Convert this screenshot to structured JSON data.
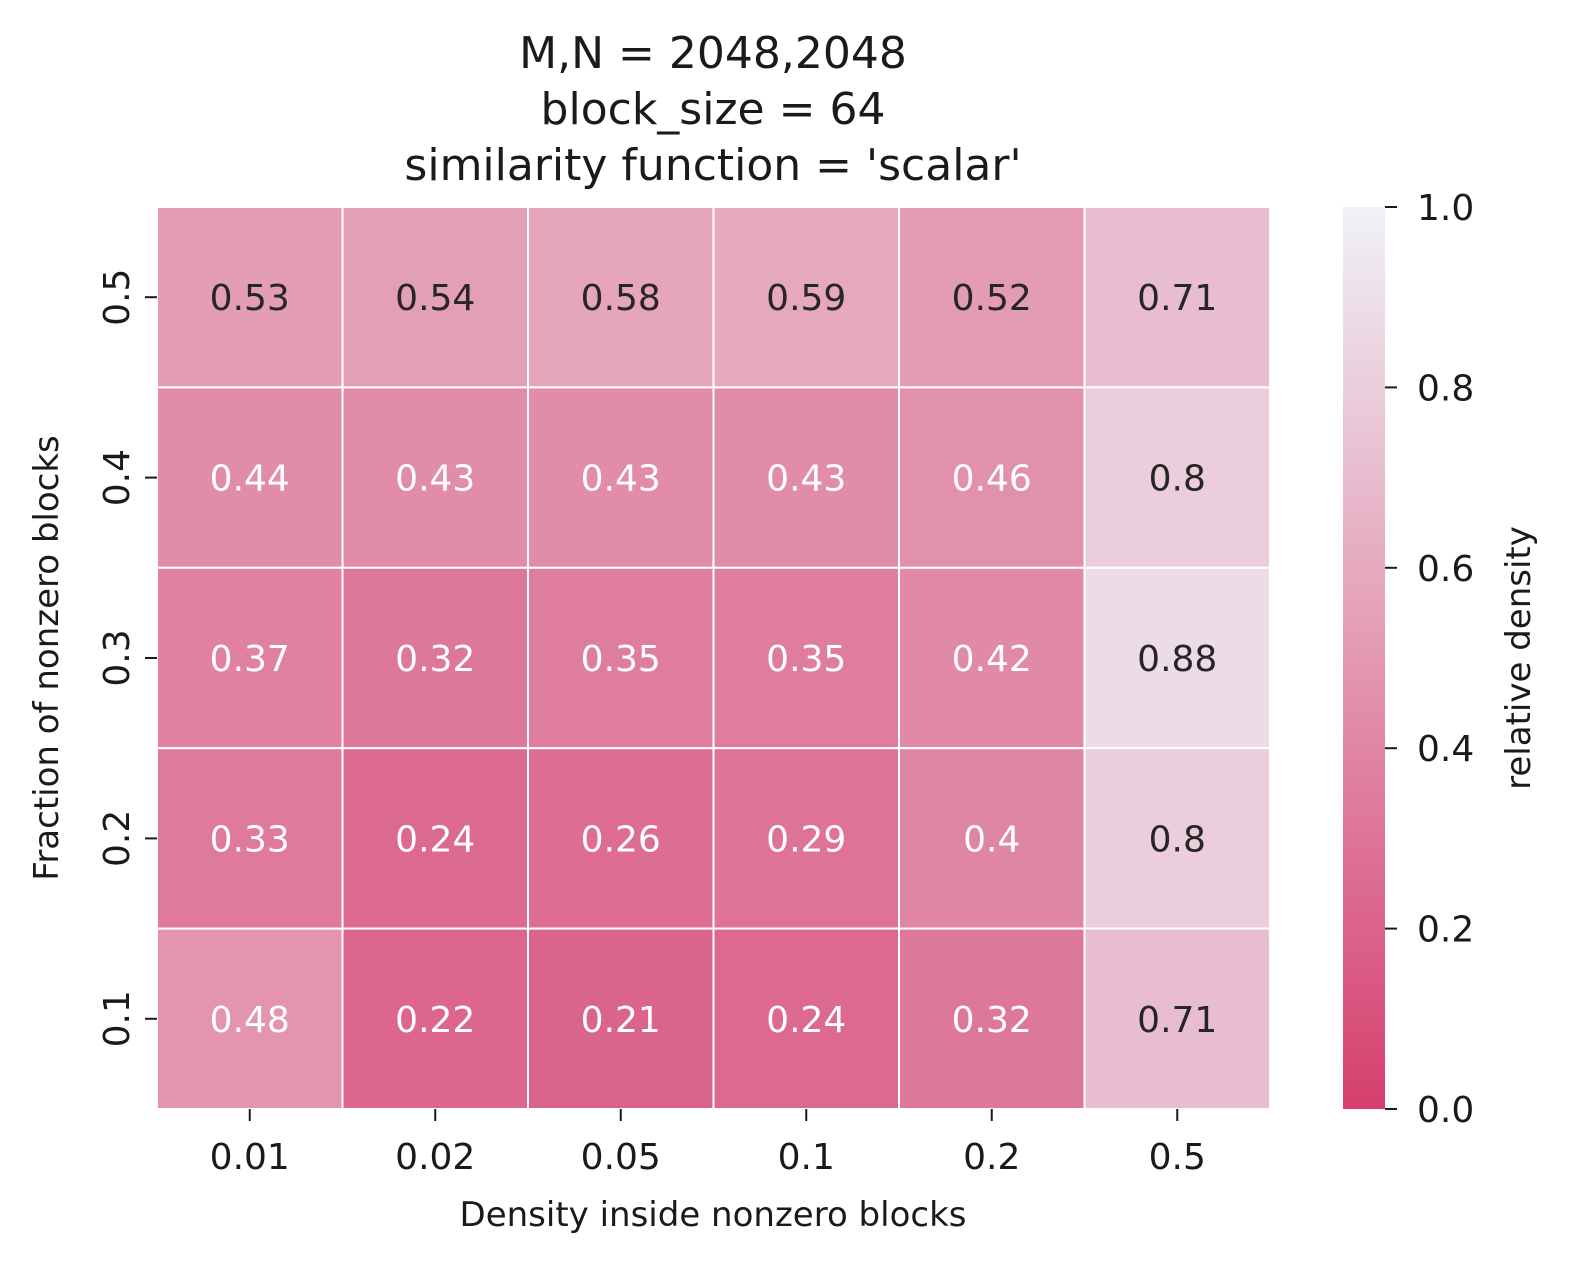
{
  "chart_data": {
    "type": "heatmap",
    "title": [
      "M,N = 2048,2048",
      "block_size = 64",
      "similarity function = 'scalar'"
    ],
    "xlabel": "Density inside nonzero blocks",
    "ylabel": "Fraction of nonzero blocks",
    "x_categories": [
      "0.01",
      "0.02",
      "0.05",
      "0.1",
      "0.2",
      "0.5"
    ],
    "y_categories": [
      "0.5",
      "0.4",
      "0.3",
      "0.2",
      "0.1"
    ],
    "values": [
      [
        0.53,
        0.54,
        0.58,
        0.59,
        0.52,
        0.71
      ],
      [
        0.44,
        0.43,
        0.43,
        0.43,
        0.46,
        0.8
      ],
      [
        0.37,
        0.32,
        0.35,
        0.35,
        0.42,
        0.88
      ],
      [
        0.33,
        0.24,
        0.26,
        0.29,
        0.4,
        0.8
      ],
      [
        0.48,
        0.22,
        0.21,
        0.24,
        0.32,
        0.71
      ]
    ],
    "colorbar": {
      "label": "relative density",
      "range": [
        0.0,
        1.0
      ],
      "ticks": [
        "0.0",
        "0.2",
        "0.4",
        "0.6",
        "0.8",
        "1.0"
      ],
      "color_low": "#d63f6e",
      "color_high": "#f0f1f7"
    },
    "annotation_colors": {
      "dark": "#262626",
      "light": "#ffffff"
    },
    "grid": "white lines between cells"
  }
}
